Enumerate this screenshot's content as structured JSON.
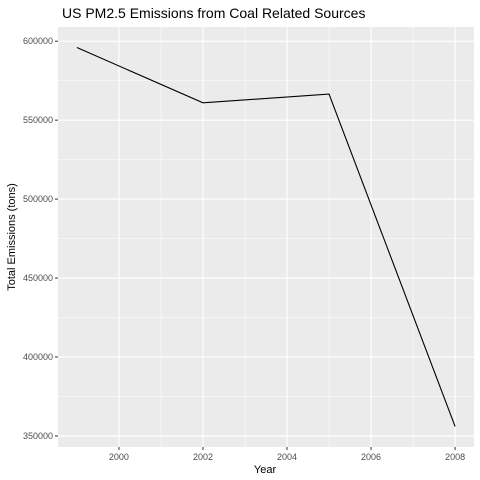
{
  "chart_data": {
    "type": "line",
    "title": "US PM2.5 Emissions from Coal Related Sources",
    "xlabel": "Year",
    "ylabel": "Total Emissions (tons)",
    "x": [
      1999,
      2002,
      2005,
      2008
    ],
    "series": [
      {
        "values": [
          596000,
          561000,
          566500,
          356000
        ]
      }
    ],
    "xlim": [
      1998.55,
      2008.45
    ],
    "ylim": [
      343000,
      609000
    ],
    "x_ticks": [
      "2000",
      "2002",
      "2004",
      "2006",
      "2008"
    ],
    "x_tick_values": [
      2000,
      2002,
      2004,
      2006,
      2008
    ],
    "y_ticks": [
      "350000",
      "400000",
      "450000",
      "500000",
      "550000",
      "600000"
    ],
    "y_tick_values": [
      350000,
      400000,
      450000,
      500000,
      550000,
      600000
    ],
    "grid": true,
    "colors": {
      "panel": "#ebebeb",
      "grid": "#ffffff",
      "line": "#000000"
    }
  }
}
